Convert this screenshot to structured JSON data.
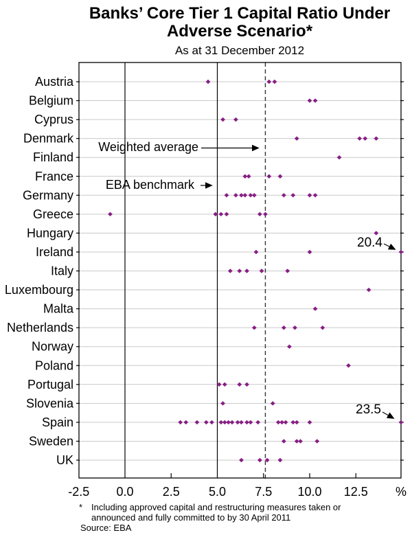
{
  "header": {
    "title_line1": "Banks’ Core Tier 1 Capital Ratio Under",
    "title_line2": "Adverse Scenario*",
    "subtitle": "As at 31 December 2012"
  },
  "annotations": {
    "weighted_average_label": "Weighted average",
    "eba_benchmark_label": "EBA benchmark",
    "ireland_max_label": "20.4",
    "spain_max_label": "23.5"
  },
  "footnote": {
    "marker": "*",
    "line1": "Including approved capital and restructuring measures taken or",
    "line2": "announced and fully committed to by 30 April 2011",
    "source": "Source: EBA"
  },
  "chart_data": {
    "type": "scatter",
    "subtype": "horizontal-dot-plot",
    "title": "Banks' Core Tier 1 Capital Ratio Under Adverse Scenario*",
    "subtitle": "As at 31 December 2012",
    "unit": "%",
    "xlim": [
      -2.5,
      15
    ],
    "x_ticks": [
      -2.5,
      0.0,
      2.5,
      5.0,
      7.5,
      10.0,
      12.5
    ],
    "x_tick_labels": [
      "-2.5",
      "0.0",
      "2.5",
      "5.0",
      "7.5",
      "10.0",
      "12.5"
    ],
    "x_axis_unit_label": "%",
    "grid": "horizontal light gray per country row",
    "reference_lines": {
      "zero_line": 0.0,
      "eba_benchmark": 5.0,
      "weighted_average": 7.6
    },
    "point_color": "#871f84",
    "gridline_color": "#c9c9c9",
    "axis_color": "#000000",
    "series": [
      {
        "country": "Austria",
        "values": [
          4.5,
          7.8,
          8.1
        ]
      },
      {
        "country": "Belgium",
        "values": [
          10.0,
          10.3
        ]
      },
      {
        "country": "Cyprus",
        "values": [
          5.3,
          6.0
        ]
      },
      {
        "country": "Denmark",
        "values": [
          9.3,
          12.7,
          13.0,
          13.6
        ]
      },
      {
        "country": "Finland",
        "values": [
          11.6
        ]
      },
      {
        "country": "France",
        "values": [
          6.5,
          6.7,
          7.8,
          8.4
        ]
      },
      {
        "country": "Germany",
        "values": [
          5.5,
          6.0,
          6.3,
          6.5,
          6.8,
          7.0,
          8.6,
          9.1,
          10.0,
          10.3
        ]
      },
      {
        "country": "Greece",
        "values": [
          -0.8,
          4.9,
          5.2,
          5.5,
          7.3,
          7.6
        ]
      },
      {
        "country": "Hungary",
        "values": [
          13.6
        ]
      },
      {
        "country": "Ireland",
        "values": [
          7.1,
          10.0,
          20.4
        ]
      },
      {
        "country": "Italy",
        "values": [
          5.7,
          6.2,
          6.6,
          7.4,
          8.8
        ]
      },
      {
        "country": "Luxembourg",
        "values": [
          13.2
        ]
      },
      {
        "country": "Malta",
        "values": [
          10.3
        ]
      },
      {
        "country": "Netherlands",
        "values": [
          7.0,
          8.6,
          9.2,
          10.7
        ]
      },
      {
        "country": "Norway",
        "values": [
          8.9
        ]
      },
      {
        "country": "Poland",
        "values": [
          12.1
        ]
      },
      {
        "country": "Portugal",
        "values": [
          5.1,
          5.4,
          6.2,
          6.6
        ]
      },
      {
        "country": "Slovenia",
        "values": [
          5.3,
          8.0
        ]
      },
      {
        "country": "Spain",
        "values": [
          3.0,
          3.3,
          3.9,
          4.4,
          4.7,
          5.2,
          5.4,
          5.6,
          5.8,
          6.1,
          6.3,
          6.6,
          6.8,
          7.2,
          8.3,
          8.5,
          8.7,
          9.1,
          9.3,
          10.0,
          23.5
        ]
      },
      {
        "country": "Sweden",
        "values": [
          8.6,
          9.3,
          9.5,
          10.4
        ]
      },
      {
        "country": "UK",
        "values": [
          6.3,
          7.3,
          7.7,
          8.4
        ]
      }
    ],
    "clipped_points": [
      {
        "country": "Ireland",
        "value": 20.4,
        "label": "20.4"
      },
      {
        "country": "Spain",
        "value": 23.5,
        "label": "23.5"
      }
    ],
    "callouts": [
      {
        "label": "Weighted average",
        "points_to": "dashed vertical line at 7.6"
      },
      {
        "label": "EBA benchmark",
        "points_to": "solid vertical line at 5.0"
      }
    ]
  }
}
